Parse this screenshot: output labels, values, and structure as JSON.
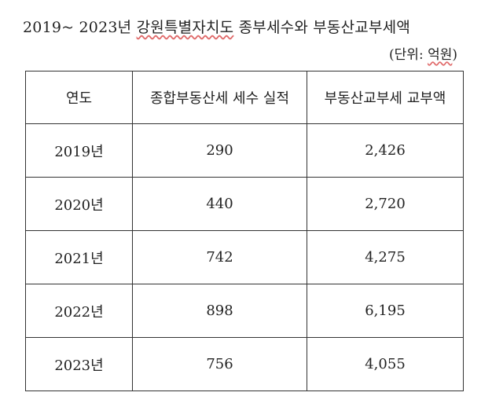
{
  "title": {
    "prefix": "2019~ 2023년 ",
    "highlight": "강원특별자치도",
    "suffix": " 종부세수와 부동산교부세액"
  },
  "unit": {
    "open": "(단위: ",
    "highlight": "억원",
    "close": ")"
  },
  "table": {
    "headers": [
      "연도",
      "종합부동산세 세수 실적",
      "부동산교부세 교부액"
    ],
    "rows": [
      [
        "2019년",
        "290",
        "2,426"
      ],
      [
        "2020년",
        "440",
        "2,720"
      ],
      [
        "2021년",
        "742",
        "4,275"
      ],
      [
        "2022년",
        "898",
        "6,195"
      ],
      [
        "2023년",
        "756",
        "4,055"
      ]
    ]
  }
}
